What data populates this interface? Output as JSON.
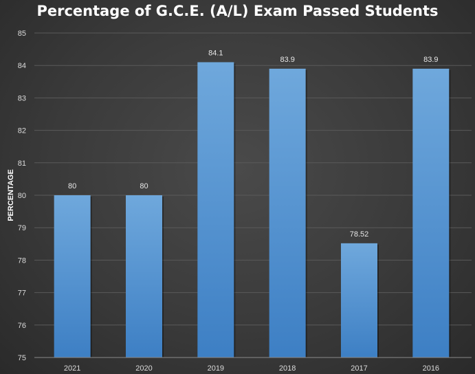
{
  "chart_data": {
    "type": "bar",
    "title": "Percentage of G.C.E. (A/L) Exam Passed Students",
    "ylabel": "PERCENTAGE",
    "xlabel": "",
    "categories": [
      "2021",
      "2020",
      "2019",
      "2018",
      "2017",
      "2016"
    ],
    "values": [
      80,
      80,
      84.1,
      83.9,
      78.52,
      83.9
    ],
    "data_labels": [
      "80",
      "80",
      "84.1",
      "83.9",
      "78.52",
      "83.9"
    ],
    "ylim": [
      75,
      85
    ],
    "yticks": [
      "75",
      "76",
      "77",
      "78",
      "79",
      "80",
      "81",
      "82",
      "83",
      "84",
      "85"
    ],
    "grid": true,
    "legend": "none",
    "colors": {
      "bar_top": "#6fa8dc",
      "bar_bottom": "#3d7fc4",
      "gridline": "#5a5a5a",
      "axis": "#8a8a8a"
    }
  }
}
